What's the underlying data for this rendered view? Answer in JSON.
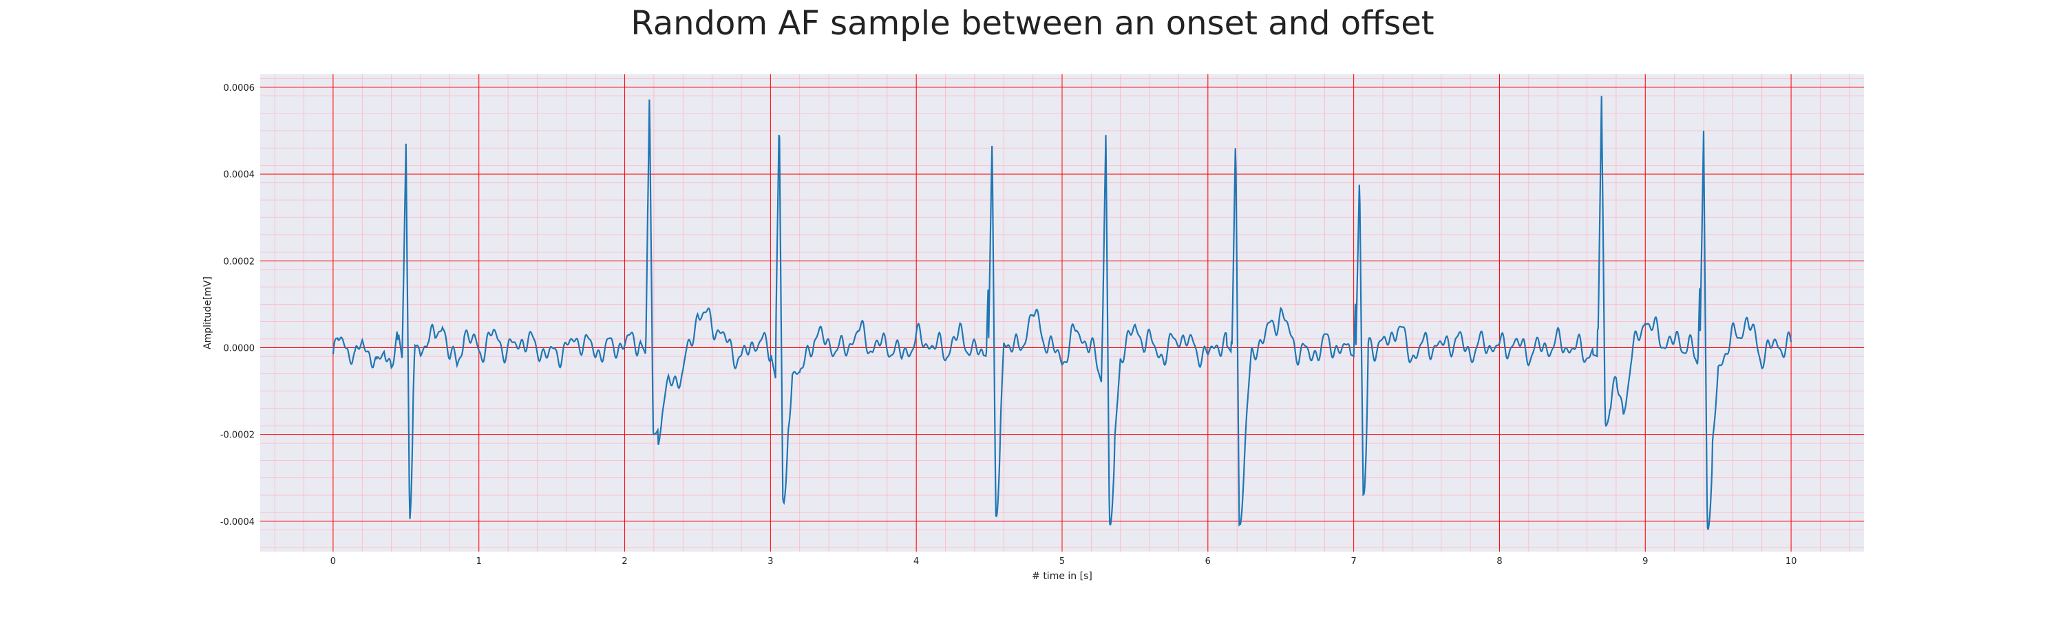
{
  "chart_data": {
    "type": "line",
    "title": "Random AF sample between an onset and offset",
    "xlabel": "# time in [s]",
    "ylabel": "Amplitude[mV]",
    "xlim": [
      -0.5,
      10.5
    ],
    "ylim": [
      -0.00047,
      0.00063
    ],
    "x_ticks": [
      0,
      1,
      2,
      3,
      4,
      5,
      6,
      7,
      8,
      9,
      10
    ],
    "y_ticks": [
      -0.0004,
      -0.0002,
      0.0,
      0.0002,
      0.0004,
      0.0006
    ],
    "y_tick_labels": [
      "-0.0004",
      "-0.0002",
      "0.0000",
      "0.0002",
      "0.0004",
      "0.0006"
    ],
    "grid": true,
    "minor_grid": true,
    "colors": {
      "background": "#eaeaf2",
      "line": "#1f77b4",
      "major_grid": "#ff0000",
      "minor_grid": "#ffb6c1"
    },
    "beats": [
      {
        "t": 0.5,
        "peak": 0.00047,
        "trough": -0.0004
      },
      {
        "t": 2.17,
        "peak": 0.00059,
        "trough": -0.0002
      },
      {
        "t": 3.06,
        "peak": 0.00054,
        "trough": -0.00036
      },
      {
        "t": 4.52,
        "peak": 0.00048,
        "trough": -0.00039
      },
      {
        "t": 5.3,
        "peak": 0.00049,
        "trough": -0.00041
      },
      {
        "t": 6.19,
        "peak": 0.00049,
        "trough": -0.00041
      },
      {
        "t": 7.04,
        "peak": 0.0004,
        "trough": -0.00034
      },
      {
        "t": 8.7,
        "peak": 0.00058,
        "trough": -0.00018
      },
      {
        "t": 9.4,
        "peak": 0.0005,
        "trough": -0.00042
      }
    ],
    "series": [
      {
        "x": [
          0.0,
          0.03,
          0.06,
          0.1,
          0.15,
          0.2,
          0.25,
          0.3,
          0.35,
          0.4,
          0.45,
          0.48,
          0.5,
          0.52,
          0.55,
          0.6,
          0.65,
          0.7,
          0.75,
          0.8,
          0.85,
          0.9,
          1.0,
          1.1,
          1.2,
          1.3,
          1.4,
          1.5,
          1.6,
          1.7,
          1.8,
          1.9,
          2.0,
          2.1,
          2.15,
          2.17,
          2.2,
          2.25,
          2.3,
          2.4,
          2.5,
          2.6,
          2.7,
          2.8,
          2.9,
          3.0,
          3.04,
          3.06,
          3.09,
          3.15,
          3.2,
          3.3,
          3.4,
          3.5,
          3.6,
          3.7,
          3.8,
          3.9,
          4.0,
          4.1,
          4.2,
          4.3,
          4.4,
          4.48,
          4.52,
          4.55,
          4.6,
          4.7,
          4.8,
          4.9,
          5.0,
          5.1,
          5.2,
          5.27,
          5.3,
          5.33,
          5.4,
          5.5,
          5.6,
          5.7,
          5.8,
          5.9,
          6.0,
          6.1,
          6.16,
          6.19,
          6.22,
          6.3,
          6.4,
          6.5,
          6.6,
          6.7,
          6.8,
          6.9,
          7.0,
          7.04,
          7.07,
          7.1,
          7.2,
          7.3,
          7.4,
          7.5,
          7.6,
          7.7,
          7.8,
          7.9,
          8.0,
          8.1,
          8.2,
          8.3,
          8.4,
          8.5,
          8.6,
          8.67,
          8.7,
          8.73,
          8.8,
          8.85,
          8.9,
          9.0,
          9.1,
          9.2,
          9.3,
          9.36,
          9.4,
          9.43,
          9.5,
          9.6,
          9.7,
          9.8,
          9.9,
          10.0
        ],
        "y": [
          -3e-05,
          2e-05,
          1e-05,
          1e-05,
          -4e-05,
          2e-05,
          -1e-05,
          -6e-05,
          1e-05,
          -5e-05,
          3e-05,
          -4e-05,
          0.00047,
          -0.0004,
          1e-05,
          -2e-05,
          4e-05,
          1e-05,
          6e-05,
          -1e-05,
          -5e-05,
          4e-05,
          -1e-05,
          3e-05,
          -1e-05,
          2e-05,
          0.0,
          -2e-05,
          0.0,
          2e-05,
          -1e-05,
          0.0,
          1e-05,
          2e-05,
          -2e-05,
          0.00059,
          -0.0002,
          -0.00018,
          -8e-05,
          -6e-05,
          8e-05,
          6e-05,
          1e-05,
          -3e-05,
          2e-05,
          -1e-05,
          -8e-05,
          0.00054,
          -0.00036,
          -4e-05,
          -7e-05,
          3e-05,
          1e-05,
          -1e-05,
          4e-05,
          0.0,
          1e-05,
          -2e-05,
          2e-05,
          1e-05,
          -1e-05,
          3e-05,
          -1e-05,
          -2e-05,
          0.00048,
          -0.00039,
          2e-05,
          -1e-05,
          8e-05,
          1e-05,
          -3e-05,
          4e-05,
          0.0,
          -8e-05,
          0.00049,
          -0.00041,
          -1e-05,
          4e-05,
          1e-05,
          -2e-05,
          3e-05,
          0.0,
          -2e-05,
          2e-05,
          -1e-05,
          0.00049,
          -0.00041,
          -1e-05,
          3e-05,
          8e-05,
          0.0,
          -2e-05,
          1e-05,
          0.0,
          -2e-05,
          0.0004,
          -0.00034,
          1e-05,
          0.0,
          5e-05,
          -2e-05,
          1e-05,
          0.0,
          2e-05,
          -1e-05,
          1e-05,
          0.0,
          1e-05,
          -1e-05,
          0.0,
          1e-05,
          0.0,
          -1e-05,
          -2e-05,
          0.00058,
          -0.00018,
          -8e-05,
          -0.00015,
          -3e-05,
          7e-05,
          2e-05,
          1e-05,
          1e-05,
          -4e-05,
          0.0005,
          -0.00042,
          -4e-05,
          2e-05,
          6e-05,
          -2e-05,
          1e-05,
          0.0
        ]
      }
    ]
  }
}
